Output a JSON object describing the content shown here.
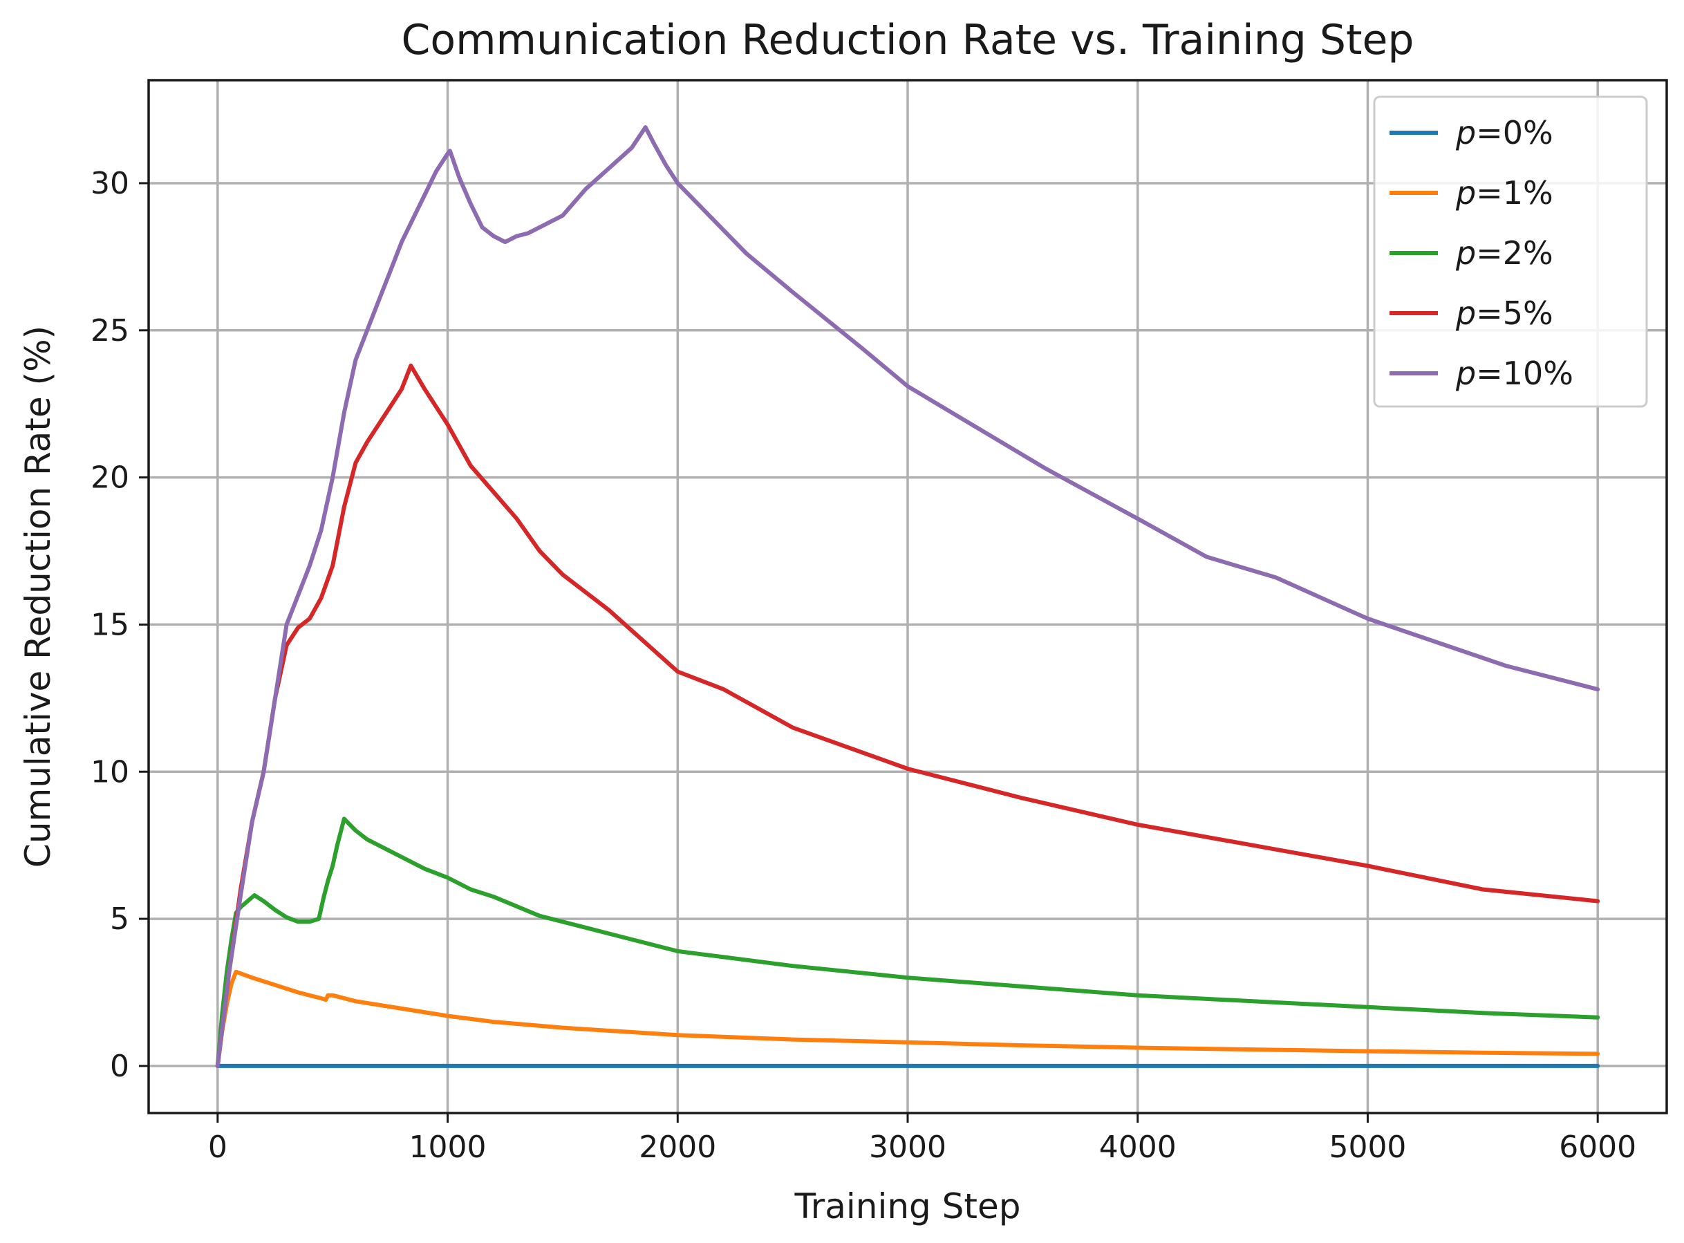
{
  "chart_data": {
    "type": "line",
    "title": "Communication Reduction Rate vs. Training Step",
    "xlabel": "Training Step",
    "ylabel": "Cumulative Reduction Rate (%)",
    "xlim": [
      -300,
      6300
    ],
    "ylim": [
      -1.6,
      33.5
    ],
    "xticks": [
      0,
      1000,
      2000,
      3000,
      4000,
      5000,
      6000
    ],
    "xtick_labels": [
      "0",
      "1000",
      "2000",
      "3000",
      "4000",
      "5000",
      "6000"
    ],
    "yticks": [
      0,
      5,
      10,
      15,
      20,
      25,
      30
    ],
    "ytick_labels": [
      "0",
      "5",
      "10",
      "15",
      "20",
      "25",
      "30"
    ],
    "grid": true,
    "legend_position": "top-right",
    "series": [
      {
        "name": "p=0%",
        "legend_var": "p",
        "legend_value": "=0%",
        "color": "#1f77b4",
        "x": [
          0,
          6000
        ],
        "y": [
          0,
          0
        ]
      },
      {
        "name": "p=1%",
        "legend_var": "p",
        "legend_value": "=1%",
        "color": "#ff7f0e",
        "x": [
          0,
          20,
          40,
          60,
          80,
          150,
          250,
          350,
          450,
          470,
          480,
          500,
          600,
          800,
          1000,
          1200,
          1500,
          2000,
          2500,
          3000,
          3500,
          4000,
          4500,
          5000,
          5500,
          6000
        ],
        "y": [
          0,
          1.2,
          2.1,
          2.8,
          3.2,
          3.0,
          2.75,
          2.5,
          2.3,
          2.25,
          2.4,
          2.4,
          2.2,
          1.95,
          1.7,
          1.5,
          1.3,
          1.05,
          0.9,
          0.8,
          0.7,
          0.62,
          0.56,
          0.5,
          0.45,
          0.41
        ]
      },
      {
        "name": "p=2%",
        "legend_var": "p",
        "legend_value": "=2%",
        "color": "#2ca02c",
        "x": [
          0,
          20,
          40,
          60,
          80,
          100,
          130,
          160,
          200,
          250,
          300,
          350,
          400,
          440,
          460,
          480,
          500,
          520,
          550,
          600,
          650,
          700,
          800,
          900,
          1000,
          1100,
          1200,
          1400,
          1600,
          1800,
          2000,
          2200,
          2500,
          3000,
          3500,
          4000,
          4500,
          5000,
          5500,
          6000
        ],
        "y": [
          0,
          1.8,
          3.2,
          4.3,
          5.2,
          5.4,
          5.6,
          5.8,
          5.6,
          5.3,
          5.05,
          4.9,
          4.9,
          5.0,
          5.7,
          6.3,
          6.8,
          7.5,
          8.4,
          8.0,
          7.7,
          7.5,
          7.1,
          6.7,
          6.4,
          6.0,
          5.75,
          5.1,
          4.7,
          4.3,
          3.9,
          3.7,
          3.4,
          3.0,
          2.7,
          2.4,
          2.2,
          2.0,
          1.8,
          1.65
        ]
      },
      {
        "name": "p=5%",
        "legend_var": "p",
        "legend_value": "=5%",
        "color": "#d62728",
        "x": [
          0,
          50,
          100,
          150,
          200,
          250,
          300,
          350,
          400,
          450,
          500,
          550,
          600,
          650,
          700,
          750,
          800,
          840,
          900,
          1000,
          1100,
          1200,
          1300,
          1400,
          1500,
          1700,
          2000,
          2200,
          2500,
          3000,
          3500,
          4000,
          4500,
          5000,
          5500,
          6000
        ],
        "y": [
          0,
          3.2,
          6.0,
          8.3,
          10.0,
          12.5,
          14.3,
          14.9,
          15.2,
          15.9,
          17.0,
          19.0,
          20.5,
          21.2,
          21.8,
          22.4,
          23.0,
          23.8,
          23.0,
          21.8,
          20.4,
          19.5,
          18.6,
          17.5,
          16.7,
          15.5,
          13.4,
          12.8,
          11.5,
          10.1,
          9.1,
          8.2,
          7.5,
          6.8,
          6.0,
          5.6
        ]
      },
      {
        "name": "p=10%",
        "legend_var": "p",
        "legend_value": "=10%",
        "color": "#8c6bb1",
        "x": [
          0,
          50,
          100,
          150,
          200,
          250,
          300,
          350,
          400,
          450,
          500,
          550,
          600,
          650,
          700,
          750,
          800,
          850,
          900,
          950,
          1000,
          1010,
          1050,
          1100,
          1150,
          1200,
          1250,
          1300,
          1350,
          1400,
          1500,
          1600,
          1700,
          1800,
          1860,
          1900,
          1950,
          2000,
          2100,
          2200,
          2300,
          2500,
          2800,
          3000,
          3300,
          3600,
          4000,
          4300,
          4600,
          5000,
          5300,
          5600,
          6000
        ],
        "y": [
          0,
          3.2,
          5.8,
          8.3,
          10.0,
          12.5,
          15.0,
          16.0,
          17.0,
          18.2,
          20.0,
          22.2,
          24.0,
          25.0,
          26.0,
          27.0,
          28.0,
          28.8,
          29.6,
          30.4,
          31.0,
          31.1,
          30.2,
          29.3,
          28.5,
          28.2,
          28.0,
          28.2,
          28.3,
          28.5,
          28.9,
          29.8,
          30.5,
          31.2,
          31.9,
          31.3,
          30.6,
          30.0,
          29.2,
          28.4,
          27.6,
          26.3,
          24.4,
          23.1,
          21.7,
          20.3,
          18.6,
          17.3,
          16.6,
          15.2,
          14.4,
          13.6,
          12.8
        ]
      }
    ]
  }
}
